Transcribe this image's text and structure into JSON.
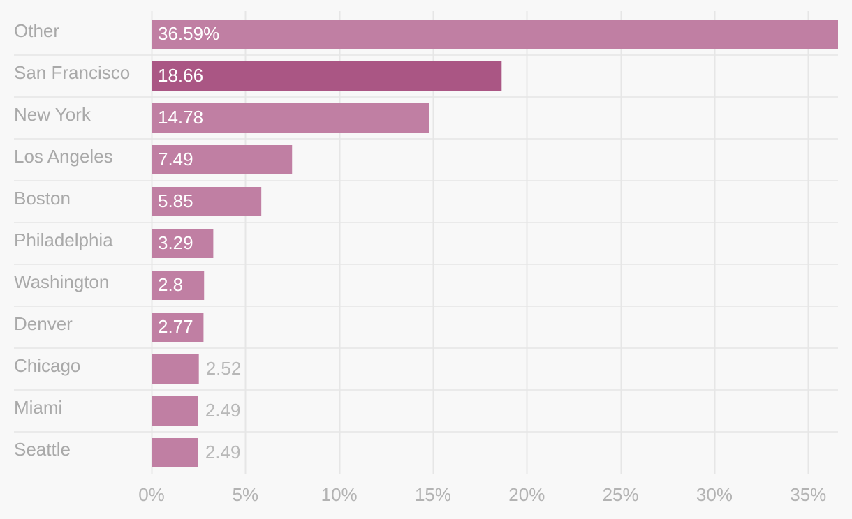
{
  "chart_data": {
    "type": "bar",
    "orientation": "horizontal",
    "title": "",
    "xlabel": "",
    "ylabel": "",
    "categories": [
      "Other",
      "San Francisco",
      "New York",
      "Los Angeles",
      "Boston",
      "Philadelphia",
      "Washington",
      "Denver",
      "Chicago",
      "Miami",
      "Seattle"
    ],
    "values": [
      36.59,
      18.66,
      14.78,
      7.49,
      5.85,
      3.29,
      2.8,
      2.77,
      2.52,
      2.49,
      2.49
    ],
    "value_labels": [
      "36.59%",
      "18.66",
      "14.78",
      "7.49",
      "5.85",
      "3.29",
      "2.8",
      "2.77",
      "2.52",
      "2.49",
      "2.49"
    ],
    "highlight_category": "San Francisco",
    "x_ticks": [
      0,
      5,
      10,
      15,
      20,
      25,
      30,
      35
    ],
    "x_tick_labels": [
      "0%",
      "5%",
      "10%",
      "15%",
      "20%",
      "25%",
      "30%",
      "35%"
    ],
    "xlim": [
      0,
      36.59
    ],
    "grid": true,
    "colors": {
      "bar": "#c07fa3",
      "bar_highlight": "#aa5684",
      "gridline": "#e6e6e6",
      "background": "#f8f8f8",
      "label_text": "#a9a9a9",
      "value_inside": "#ffffff",
      "value_outside": "#b8b8b8"
    }
  }
}
